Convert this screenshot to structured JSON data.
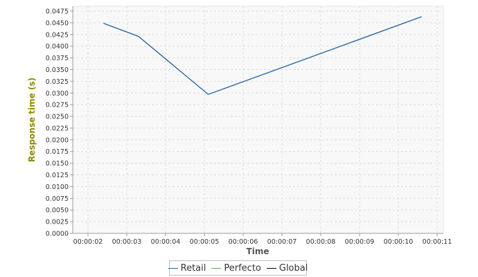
{
  "chart_data": {
    "type": "line",
    "title": "",
    "xlabel": "Time",
    "ylabel": "Response time (s)",
    "x_ticks": [
      "00:00:02",
      "00:00:03",
      "00:00:04",
      "00:00:05",
      "00:00:06",
      "00:00:07",
      "00:00:08",
      "00:00:09",
      "00:00:10",
      "00:00:11"
    ],
    "y_ticks": [
      "0.0000",
      "0.0025",
      "0.0050",
      "0.0075",
      "0.0100",
      "0.0125",
      "0.0150",
      "0.0175",
      "0.0200",
      "0.0225",
      "0.0250",
      "0.0275",
      "0.0300",
      "0.0325",
      "0.0350",
      "0.0375",
      "0.0400",
      "0.0425",
      "0.0450",
      "0.0475"
    ],
    "xlim": [
      "00:00:02",
      "00:00:11"
    ],
    "ylim": [
      0,
      0.0475
    ],
    "grid": true,
    "legend_position": "bottom-center",
    "series": [
      {
        "name": "Retail",
        "color": "#1f5fa0",
        "points": [
          {
            "x": "00:00:02.4",
            "y": 0.0449
          },
          {
            "x": "00:00:03.3",
            "y": 0.0421
          },
          {
            "x": "00:00:05.1",
            "y": 0.0297
          },
          {
            "x": "00:00:10.6",
            "y": 0.0463
          }
        ]
      },
      {
        "name": "Perfecto",
        "color": "#5fb04a",
        "points": []
      },
      {
        "name": "Global",
        "color": "#000000",
        "points": []
      }
    ]
  },
  "colors": {
    "plot_background": "#f8f8f8",
    "grid": "#dcdcdc",
    "axis": "#9a9a9a",
    "ylabel": "#8c8c00",
    "xlabel": "#555555",
    "tick_text": "#333333"
  }
}
